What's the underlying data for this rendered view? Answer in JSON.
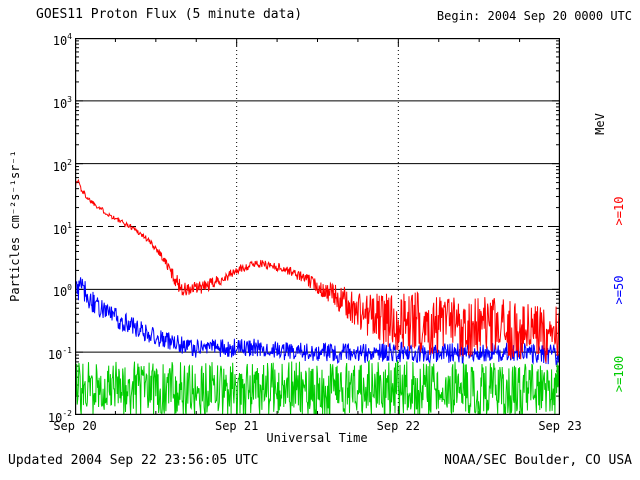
{
  "header": {
    "title": "GOES11 Proton Flux (5 minute data)",
    "begin": "Begin: 2004 Sep 20 0000 UTC"
  },
  "footer": {
    "updated": "Updated 2004 Sep 22 23:56:05 UTC",
    "source": "NOAA/SEC Boulder, CO USA"
  },
  "axes": {
    "ylabel": "Particles cm⁻²s⁻¹sr⁻¹",
    "xlabel": "Universal Time",
    "right_unit": "MeV",
    "x_ticks": [
      "Sep 20",
      "Sep 21",
      "Sep 22",
      "Sep 23"
    ],
    "y_exponents": [
      4,
      3,
      2,
      1,
      0,
      -1,
      -2
    ]
  },
  "chart_data": {
    "type": "line",
    "title": "GOES11 Proton Flux (5 minute data)",
    "xlabel": "Universal Time",
    "ylabel": "Particles cm-2 s-1 sr-1",
    "x_range_days": [
      0,
      3
    ],
    "x_tick_labels": [
      "Sep 20",
      "Sep 21",
      "Sep 22",
      "Sep 23"
    ],
    "y_log_range": [
      -2,
      4
    ],
    "grid": {
      "solid_decades": [
        3,
        2,
        0,
        -1
      ],
      "dashed_decades": [
        1
      ],
      "dotted_vertical_days": [
        1,
        2
      ]
    },
    "cadence_minutes": 5,
    "seed": 1337,
    "legend_position": "right",
    "series": [
      {
        "name": "Protons >=10 MeV",
        "label": ">=10",
        "color": "#ff0000",
        "control_points": [
          [
            0.0,
            45,
            0.05
          ],
          [
            0.02,
            55,
            0.05
          ],
          [
            0.04,
            38,
            0.05
          ],
          [
            0.08,
            28,
            0.04
          ],
          [
            0.13,
            22,
            0.04
          ],
          [
            0.2,
            16,
            0.04
          ],
          [
            0.28,
            12,
            0.04
          ],
          [
            0.36,
            9.5,
            0.04
          ],
          [
            0.44,
            6.5,
            0.05
          ],
          [
            0.52,
            4.0,
            0.06
          ],
          [
            0.58,
            2.2,
            0.09
          ],
          [
            0.63,
            1.3,
            0.12
          ],
          [
            0.68,
            0.95,
            0.14
          ],
          [
            0.74,
            1.0,
            0.12
          ],
          [
            0.82,
            1.15,
            0.1
          ],
          [
            0.92,
            1.5,
            0.08
          ],
          [
            1.02,
            2.1,
            0.07
          ],
          [
            1.12,
            2.6,
            0.06
          ],
          [
            1.22,
            2.4,
            0.07
          ],
          [
            1.32,
            2.0,
            0.07
          ],
          [
            1.42,
            1.5,
            0.09
          ],
          [
            1.52,
            1.05,
            0.13
          ],
          [
            1.62,
            0.75,
            0.2
          ],
          [
            1.72,
            0.5,
            0.3
          ],
          [
            1.82,
            0.38,
            0.38
          ],
          [
            1.95,
            0.32,
            0.45
          ],
          [
            2.1,
            0.3,
            0.5
          ],
          [
            2.3,
            0.27,
            0.5
          ],
          [
            2.5,
            0.25,
            0.5
          ],
          [
            2.7,
            0.22,
            0.48
          ],
          [
            2.85,
            0.2,
            0.48
          ],
          [
            3.0,
            0.2,
            0.48
          ]
        ]
      },
      {
        "name": "Protons >=50 MeV",
        "label": ">=50",
        "color": "#0000ff",
        "control_points": [
          [
            0.0,
            0.95,
            0.2
          ],
          [
            0.05,
            1.0,
            0.2
          ],
          [
            0.1,
            0.65,
            0.18
          ],
          [
            0.18,
            0.45,
            0.17
          ],
          [
            0.26,
            0.34,
            0.16
          ],
          [
            0.35,
            0.26,
            0.15
          ],
          [
            0.45,
            0.2,
            0.15
          ],
          [
            0.55,
            0.16,
            0.15
          ],
          [
            0.65,
            0.13,
            0.15
          ],
          [
            0.75,
            0.115,
            0.15
          ],
          [
            0.85,
            0.12,
            0.15
          ],
          [
            0.95,
            0.115,
            0.15
          ],
          [
            1.1,
            0.12,
            0.15
          ],
          [
            1.3,
            0.105,
            0.15
          ],
          [
            1.5,
            0.1,
            0.15
          ],
          [
            1.7,
            0.095,
            0.16
          ],
          [
            1.9,
            0.1,
            0.16
          ],
          [
            2.1,
            0.1,
            0.16
          ],
          [
            2.3,
            0.095,
            0.16
          ],
          [
            2.5,
            0.1,
            0.16
          ],
          [
            2.7,
            0.1,
            0.16
          ],
          [
            3.0,
            0.09,
            0.16
          ]
        ]
      },
      {
        "name": "Protons >=100 MeV",
        "label": ">=100",
        "color": "#00cc00",
        "control_points": [
          [
            0.0,
            0.026,
            0.45
          ],
          [
            0.5,
            0.025,
            0.45
          ],
          [
            1.0,
            0.026,
            0.45
          ],
          [
            1.5,
            0.025,
            0.45
          ],
          [
            2.0,
            0.026,
            0.45
          ],
          [
            2.5,
            0.025,
            0.45
          ],
          [
            3.0,
            0.025,
            0.45
          ]
        ]
      }
    ]
  }
}
